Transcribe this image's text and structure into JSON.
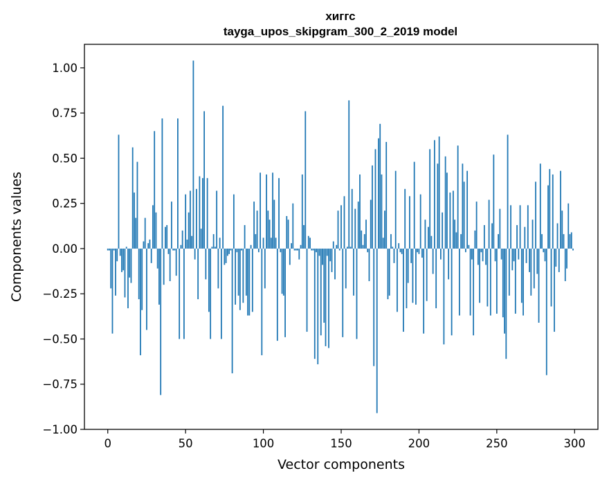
{
  "chart_data": {
    "type": "bar",
    "title": "хиггс",
    "subtitle": "tayga_upos_skipgram_300_2_2019 model",
    "xlabel": "Vector components",
    "ylabel": "Components values",
    "xlim": [
      -15,
      315
    ],
    "ylim": [
      -1.0,
      1.13
    ],
    "xticks": [
      0,
      50,
      100,
      150,
      200,
      250,
      300
    ],
    "xtick_labels": [
      "0",
      "50",
      "100",
      "150",
      "200",
      "250",
      "300"
    ],
    "yticks": [
      -1.0,
      -0.75,
      -0.5,
      -0.25,
      0.0,
      0.25,
      0.5,
      0.75,
      1.0
    ],
    "ytick_labels": [
      "−1.00",
      "−0.75",
      "−0.50",
      "−0.25",
      "0.00",
      "0.25",
      "0.50",
      "0.75",
      "1.00"
    ],
    "grid": false,
    "bar_color": "#1f77b4",
    "x_start": 0,
    "values": [
      -0.01,
      -0.01,
      -0.22,
      -0.47,
      -0.01,
      -0.26,
      -0.07,
      0.63,
      -0.04,
      -0.13,
      -0.12,
      -0.27,
      0.01,
      -0.33,
      -0.16,
      -0.19,
      0.56,
      0.31,
      0.17,
      0.48,
      -0.28,
      -0.59,
      -0.34,
      0.04,
      0.17,
      -0.45,
      0.03,
      0.05,
      -0.08,
      0.24,
      0.65,
      0.2,
      -0.11,
      -0.31,
      -0.81,
      0.72,
      -0.2,
      0.12,
      0.13,
      -0.03,
      -0.18,
      0.26,
      -0.01,
      -0.01,
      -0.15,
      0.72,
      -0.5,
      0.02,
      0.1,
      -0.5,
      0.3,
      0.05,
      0.2,
      0.32,
      0.07,
      1.04,
      -0.06,
      0.33,
      -0.28,
      0.4,
      0.11,
      0.39,
      0.76,
      -0.17,
      0.39,
      -0.35,
      -0.5,
      0.01,
      0.08,
      0.01,
      0.32,
      -0.22,
      0.06,
      -0.5,
      0.79,
      -0.09,
      -0.08,
      -0.04,
      -0.03,
      -0.01,
      -0.69,
      0.3,
      -0.31,
      -0.02,
      -0.26,
      -0.34,
      -0.01,
      -0.3,
      0.13,
      -0.26,
      -0.37,
      -0.37,
      0.02,
      -0.35,
      0.26,
      0.08,
      0.21,
      -0.02,
      0.42,
      -0.59,
      0.06,
      -0.22,
      0.41,
      0.21,
      0.16,
      0.06,
      0.42,
      0.27,
      0.06,
      -0.51,
      0.39,
      -0.02,
      -0.25,
      -0.26,
      -0.49,
      0.18,
      0.16,
      -0.09,
      0.03,
      0.25,
      -0.01,
      -0.01,
      -0.01,
      -0.06,
      0.02,
      0.41,
      0.13,
      0.76,
      -0.46,
      0.07,
      0.06,
      -0.01,
      -0.01,
      -0.61,
      -0.02,
      -0.64,
      -0.04,
      -0.48,
      -0.09,
      -0.41,
      -0.54,
      -0.04,
      -0.55,
      -0.07,
      -0.13,
      0.04,
      -0.17,
      0.02,
      0.21,
      -0.01,
      0.24,
      -0.49,
      0.29,
      -0.22,
      0.01,
      0.82,
      0.01,
      0.33,
      -0.26,
      0.22,
      -0.5,
      0.26,
      0.41,
      0.1,
      0.02,
      0.08,
      0.16,
      -0.02,
      -0.18,
      0.27,
      0.46,
      -0.65,
      0.55,
      -0.91,
      0.61,
      0.69,
      0.41,
      0.06,
      0.21,
      0.59,
      -0.28,
      -0.26,
      0.08,
      0.01,
      -0.08,
      0.43,
      -0.35,
      0.03,
      -0.02,
      -0.03,
      -0.46,
      0.33,
      -0.33,
      -0.19,
      0.29,
      -0.08,
      -0.3,
      0.48,
      -0.31,
      -0.02,
      -0.03,
      0.3,
      -0.05,
      -0.47,
      0.16,
      -0.29,
      0.12,
      0.55,
      0.07,
      -0.14,
      0.6,
      -0.33,
      0.47,
      0.62,
      -0.06,
      0.2,
      -0.53,
      0.51,
      0.42,
      -0.17,
      0.31,
      -0.48,
      0.32,
      0.16,
      0.09,
      0.57,
      -0.37,
      0.08,
      0.47,
      0.37,
      -0.02,
      0.43,
      0.02,
      -0.37,
      -0.06,
      -0.48,
      0.1,
      0.26,
      -0.09,
      -0.3,
      -0.02,
      -0.07,
      0.13,
      -0.09,
      -0.32,
      0.27,
      -0.37,
      0.14,
      0.52,
      -0.07,
      -0.36,
      0.08,
      0.22,
      -0.06,
      -0.38,
      -0.47,
      -0.61,
      0.63,
      -0.26,
      0.24,
      -0.12,
      -0.07,
      -0.36,
      0.13,
      -0.06,
      0.24,
      -0.3,
      -0.37,
      0.12,
      -0.08,
      0.24,
      -0.13,
      -0.26,
      0.16,
      -0.22,
      0.37,
      -0.14,
      -0.41,
      0.47,
      0.08,
      -0.02,
      -0.07,
      -0.7,
      0.35,
      0.44,
      -0.32,
      0.41,
      -0.46,
      -0.1,
      0.14,
      -0.13,
      0.43,
      0.21,
      0.08,
      -0.18,
      -0.11,
      0.25,
      0.08,
      0.09,
      -0.01
    ]
  }
}
